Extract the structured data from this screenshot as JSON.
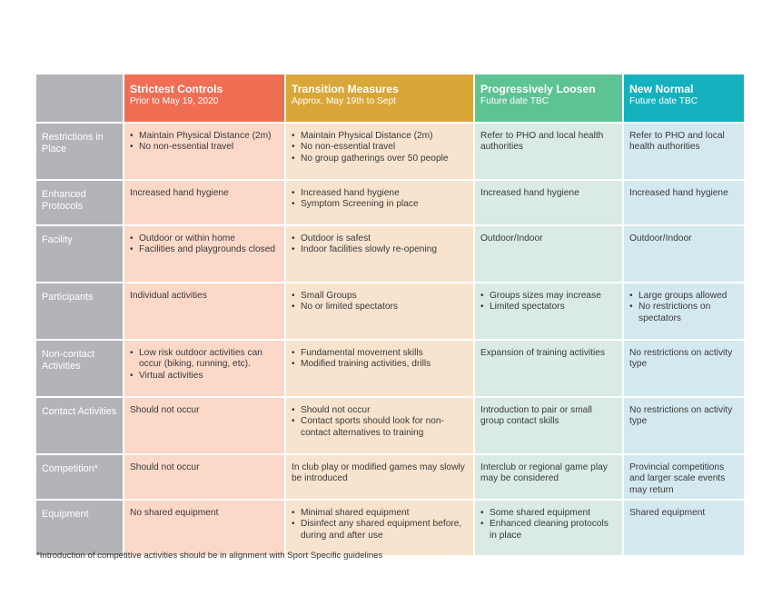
{
  "colors": {
    "row_label_bg": "#b2b4b8",
    "col1_header": "#f06f54",
    "col1_body": "#fbd8c8",
    "col2_header": "#d9a63a",
    "col2_body": "#f7e3ce",
    "col3_header": "#5ec393",
    "col3_body": "#d9ebe3",
    "col4_header": "#15b1be",
    "col4_body": "#d3e9ef"
  },
  "columns": [
    {
      "title": "Strictest Controls",
      "subtitle": "Prior to May 19, 2020"
    },
    {
      "title": "Transition Measures",
      "subtitle": "Approx. May 19th to Sept"
    },
    {
      "title": "Progressively Loosen",
      "subtitle": "Future date TBC"
    },
    {
      "title": "New Normal",
      "subtitle": "Future date TBC"
    }
  ],
  "rows": [
    {
      "label": "Restrictions in Place",
      "cells": [
        {
          "items": [
            "Maintain Physical Distance (2m)",
            "No non-essential travel"
          ]
        },
        {
          "items": [
            "Maintain Physical Distance (2m)",
            "No non-essential travel",
            "No group gatherings over 50 people"
          ]
        },
        {
          "text": "Refer to PHO and local health authorities"
        },
        {
          "text": "Refer to PHO and local health authorities"
        }
      ]
    },
    {
      "label": "Enhanced Protocols",
      "cells": [
        {
          "text": "Increased hand hygiene"
        },
        {
          "items": [
            "Increased hand hygiene",
            "Symptom Screening in place"
          ]
        },
        {
          "text": "Increased hand hygiene"
        },
        {
          "text": "Increased hand hygiene"
        }
      ]
    },
    {
      "label": "Facility",
      "cells": [
        {
          "items": [
            "Outdoor or within home",
            "Facilities and playgrounds closed"
          ]
        },
        {
          "items": [
            "Outdoor is safest",
            "Indoor facilities slowly re-opening"
          ]
        },
        {
          "text": "Outdoor/Indoor"
        },
        {
          "text": "Outdoor/Indoor"
        }
      ]
    },
    {
      "label": "Participants",
      "cells": [
        {
          "text": "Individual activities"
        },
        {
          "items": [
            "Small Groups",
            "No or limited spectators"
          ]
        },
        {
          "items": [
            "Groups sizes may increase",
            "Limited spectators"
          ]
        },
        {
          "items": [
            "Large groups allowed",
            "No restrictions on spectators"
          ]
        }
      ]
    },
    {
      "label": "Non-contact Activities",
      "cells": [
        {
          "items": [
            "Low risk outdoor activities can occur (biking, running, etc).",
            "Virtual activities"
          ]
        },
        {
          "items": [
            "Fundamental movement skills",
            "Modified training activities, drills"
          ]
        },
        {
          "text": "Expansion of training activities"
        },
        {
          "text": "No restrictions on activity type"
        }
      ]
    },
    {
      "label": "Contact Activities",
      "cells": [
        {
          "text": "Should not occur"
        },
        {
          "items": [
            "Should not occur",
            "Contact sports should look for non-contact alternatives to training"
          ]
        },
        {
          "text": "Introduction to pair or small group contact skills"
        },
        {
          "text": "No restrictions on activity type"
        }
      ]
    },
    {
      "label": "Competition*",
      "cells": [
        {
          "text": "Should not occur"
        },
        {
          "text": "In club play or modified games may slowly be introduced"
        },
        {
          "text": "Interclub or regional game play may be considered"
        },
        {
          "text": "Provincial competitions and larger scale events may return"
        }
      ]
    },
    {
      "label": "Equipment",
      "cells": [
        {
          "text": "No shared equipment"
        },
        {
          "items": [
            "Minimal shared equipment",
            "Disinfect any shared equipment before, during and after use"
          ]
        },
        {
          "items": [
            "Some shared equipment",
            "Enhanced cleaning protocols in place"
          ]
        },
        {
          "text": "Shared equipment"
        }
      ]
    }
  ],
  "footnote": "*Introduction of competitive activities should be in alignment with Sport Specific guidelines"
}
